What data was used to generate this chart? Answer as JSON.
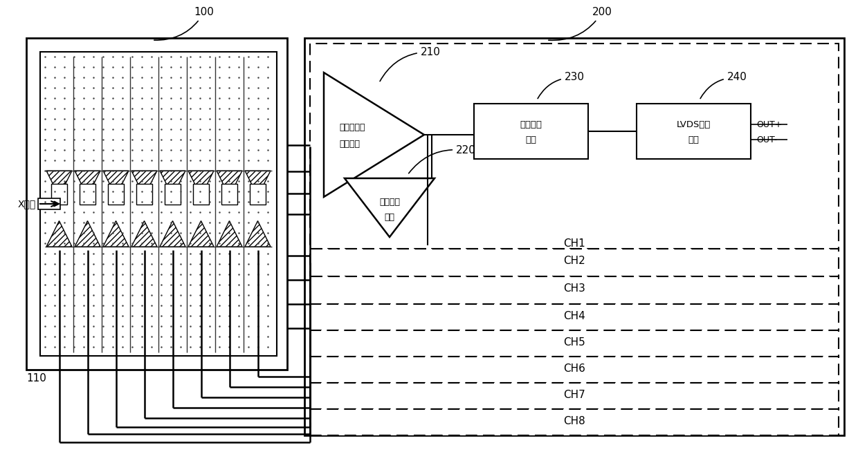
{
  "fig_width": 12.4,
  "fig_height": 6.57,
  "bg_color": "#ffffff",
  "label_100": "100",
  "label_200": "200",
  "label_110": "110",
  "label_210": "210",
  "label_220": "220",
  "label_230": "230",
  "label_240": "240",
  "xray_label": "X射线",
  "module_210_line1": "电流转电压",
  "module_210_line2": "放大模块",
  "module_220_line1": "基线恢复",
  "module_220_line2": "模块",
  "module_230_line1": "高速甄别",
  "module_230_line2": "模块",
  "module_240_line1": "LVDS输出",
  "module_240_line2": "模块",
  "out_plus": "OUT+",
  "out_minus": "OUT-",
  "channels": [
    "CH1",
    "CH2",
    "CH3",
    "CH4",
    "CH5",
    "CH6",
    "CH7",
    "CH8"
  ]
}
